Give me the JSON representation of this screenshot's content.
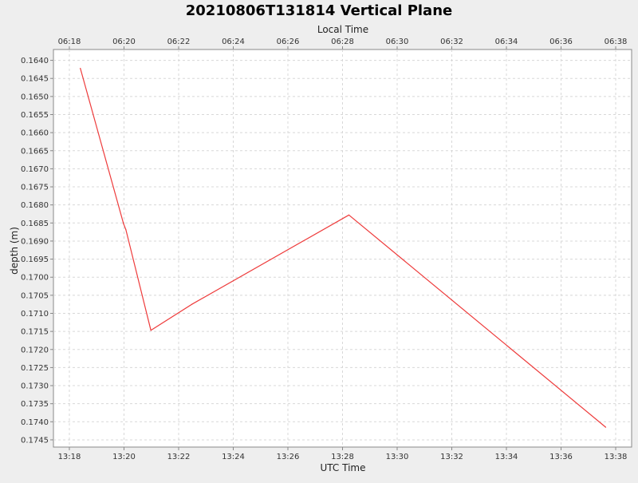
{
  "chart_data": {
    "type": "line",
    "title": "20210806T131814 Vertical Plane",
    "xlabel": "UTC Time",
    "ylabel": "depth (m)",
    "x2label": "Local Time",
    "xlim": [
      "13:17:25",
      "13:38:35"
    ],
    "ylim": [
      0.1637,
      0.1747
    ],
    "y_inverted": true,
    "grid": true,
    "legend": "none",
    "x_ticks": [
      "13:18",
      "13:20",
      "13:22",
      "13:24",
      "13:26",
      "13:28",
      "13:30",
      "13:32",
      "13:34",
      "13:36",
      "13:38"
    ],
    "x2_ticks": [
      "06:18",
      "06:20",
      "06:22",
      "06:24",
      "06:26",
      "06:28",
      "06:30",
      "06:32",
      "06:34",
      "06:36",
      "06:38"
    ],
    "y_ticks": [
      "0.1640",
      "0.1645",
      "0.1650",
      "0.1655",
      "0.1660",
      "0.1665",
      "0.1670",
      "0.1675",
      "0.1680",
      "0.1685",
      "0.1690",
      "0.1695",
      "0.1700",
      "0.1705",
      "0.1710",
      "0.1715",
      "0.1720",
      "0.1725",
      "0.1730",
      "0.1735",
      "0.1740",
      "0.1745"
    ],
    "series": [
      {
        "color": "#ee3b3b",
        "points": [
          {
            "x": "13:18:24",
            "y": 0.16422
          },
          {
            "x": "13:19:59",
            "y": 0.16852
          },
          {
            "x": "13:20:04",
            "y": 0.16868
          },
          {
            "x": "13:20:59",
            "y": 0.17147
          },
          {
            "x": "13:22:29",
            "y": 0.17075
          },
          {
            "x": "13:28:14",
            "y": 0.16828
          },
          {
            "x": "13:37:38",
            "y": 0.17415
          }
        ]
      }
    ]
  }
}
